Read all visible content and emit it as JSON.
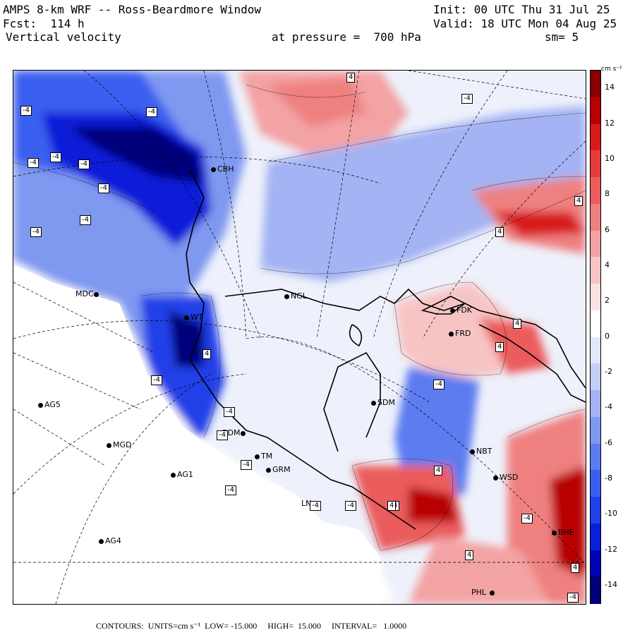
{
  "header": {
    "model": "AMPS 8-km WRF -- Ross-Beardmore Window",
    "init": "Init: 00 UTC Thu 31 Jul 25",
    "fcst": "Fcst:  114 h",
    "valid": "Valid: 18 UTC Mon 04 Aug 25",
    "field": "Vertical velocity",
    "pressure": "at pressure =  700 hPa",
    "smooth": "sm= 5"
  },
  "colorbar": {
    "units": "cm s⁻¹",
    "labels": [
      "14",
      "12",
      "10",
      "8",
      "6",
      "4",
      "2",
      "0",
      "-2",
      "-4",
      "-6",
      "-8",
      "-10",
      "-12",
      "-14"
    ],
    "min": -15,
    "max": 15,
    "colors": [
      "#00007a",
      "#0000b4",
      "#0a1fd8",
      "#2040e8",
      "#3a5ef0",
      "#5c7cf0",
      "#7f98f0",
      "#a3b3f3",
      "#c4cef7",
      "#e2e7fb",
      "#ffffff",
      "#fbe2e2",
      "#f7c4c4",
      "#f3a3a3",
      "#ef8080",
      "#eb5c5c",
      "#e83a3a",
      "#d81a1a",
      "#b80000",
      "#8a0000"
    ]
  },
  "footer": "CONTOURS:  UNITS=cm s⁻¹  LOW= -15.000     HIGH=  15.000     INTERVAL=   1.0000",
  "stations": [
    {
      "id": "MDC",
      "name": "MDC"
    },
    {
      "id": "NGL",
      "name": "NGL"
    },
    {
      "id": "FDK",
      "name": "FDK"
    },
    {
      "id": "FRD",
      "name": "FRD"
    },
    {
      "id": "SDM",
      "name": "SDM"
    },
    {
      "id": "AG5",
      "name": "AG5"
    },
    {
      "id": "MGD",
      "name": "MGD"
    },
    {
      "id": "AG1",
      "name": "AG1"
    },
    {
      "id": "AG4",
      "name": "AG4"
    },
    {
      "id": "NBT",
      "name": "NBT"
    },
    {
      "id": "WSD",
      "name": "WSD"
    },
    {
      "id": "BDM",
      "name": "BDM"
    },
    {
      "id": "TM",
      "name": "TM"
    },
    {
      "id": "GRM",
      "name": "GRM"
    },
    {
      "id": "LN",
      "name": "LN"
    },
    {
      "id": "PHL",
      "name": "PHL"
    },
    {
      "id": "BHE",
      "name": "BHE"
    },
    {
      "id": "CBH",
      "name": "CBH"
    },
    {
      "id": "WT",
      "name": "WT"
    }
  ],
  "contour_labels": [
    "-4",
    "-4",
    "-4",
    "-4",
    "-4",
    "-4",
    "-4",
    "-4",
    "-4",
    "-4",
    "-4",
    "-4",
    "-4",
    "-4",
    "4",
    "4",
    "4",
    "4",
    "4",
    "4",
    "4",
    "4",
    "4",
    "-4",
    "-4",
    "-4",
    "-4",
    "-4",
    "4",
    "4"
  ]
}
